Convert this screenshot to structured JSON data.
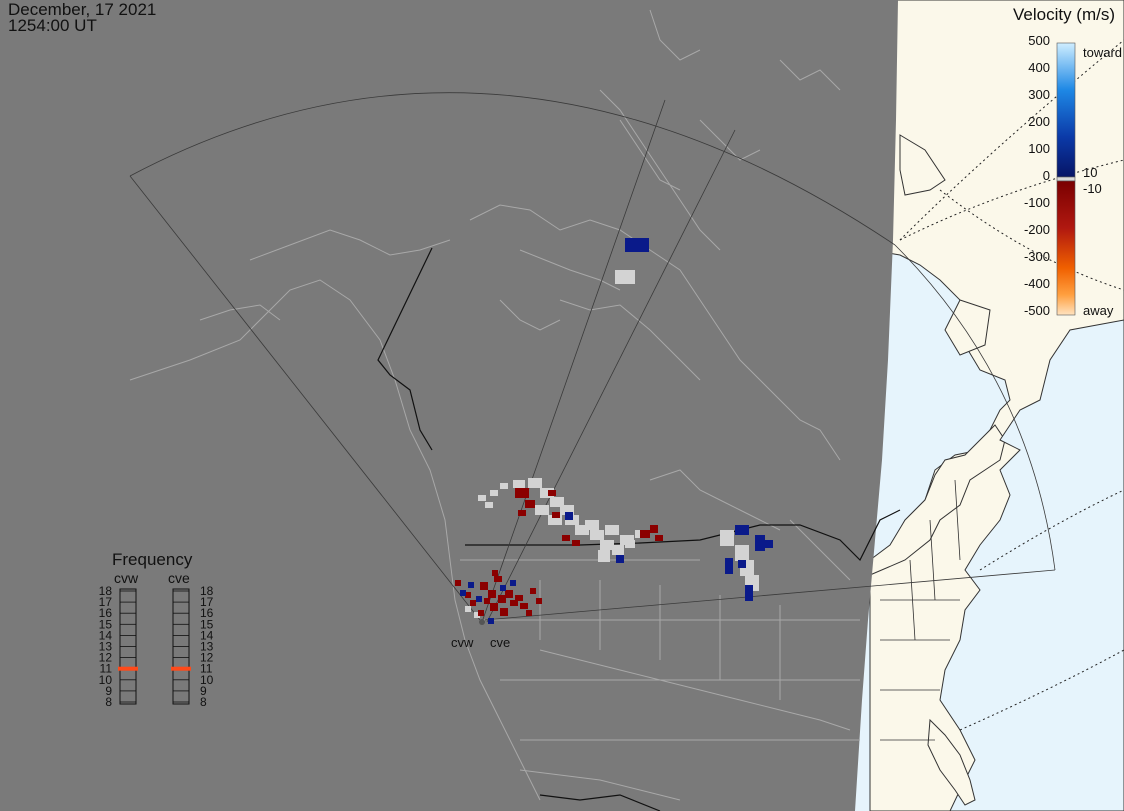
{
  "header": {
    "date": "December, 17 2021",
    "time": "1254:00 UT"
  },
  "legend": {
    "title": "Velocity (m/s)",
    "ticks": [
      "500",
      "400",
      "300",
      "200",
      "100",
      "0",
      "-100",
      "-200",
      "-300",
      "-400",
      "-500"
    ],
    "toward": "toward",
    "away": "away",
    "near_zero_pos": "10",
    "near_zero_neg": "-10",
    "colors": {
      "toward_top": "#9fd8ff",
      "toward_mid": "#1e88e5",
      "toward_low": "#0a1a8a",
      "zero_band": "#d8d8d8",
      "away_high": "#8b0000",
      "away_mid": "#c03000",
      "away_low": "#ff8a00",
      "away_end": "#ffd8a8"
    }
  },
  "frequency": {
    "title": "Frequency",
    "left_label": "cvw",
    "right_label": "cve",
    "ticks": [
      "18",
      "17",
      "16",
      "15",
      "14",
      "13",
      "12",
      "11",
      "10",
      "9",
      "8"
    ],
    "cvw_freq": 11,
    "cve_freq": 11,
    "marker_color": "#ff4a1a"
  },
  "radars": {
    "cvw": "cvw",
    "cve": "cve"
  },
  "colors": {
    "night": "#7a7a7a",
    "ocean_day": "#e6f4fc",
    "land_day": "#fbf8ea",
    "coast_night": "#9a9a9a",
    "ground_scatter": "#d3d3d3",
    "toward": "#0a1a8a",
    "away": "#8b0000"
  }
}
